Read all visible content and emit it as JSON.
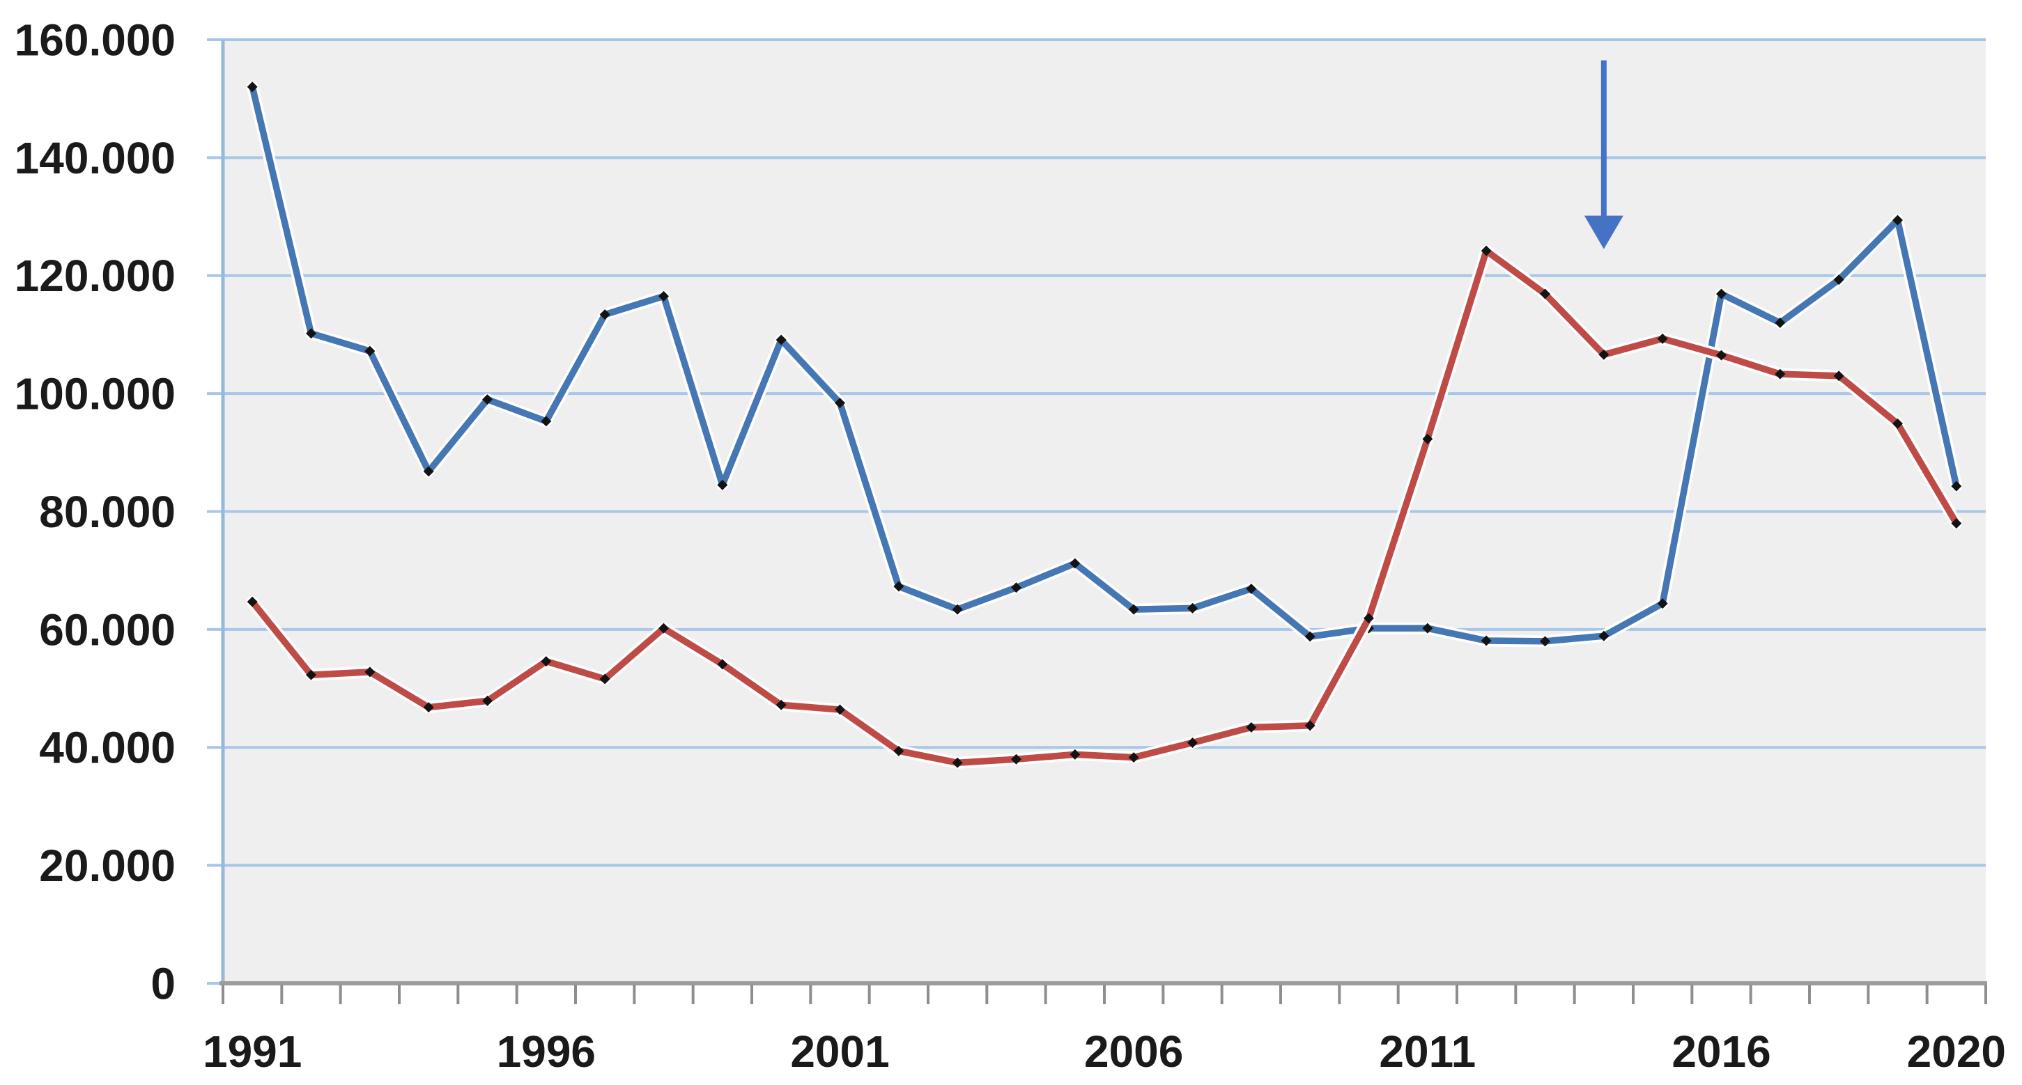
{
  "chart_data": {
    "type": "line",
    "title": "",
    "x": [
      1991,
      1992,
      1993,
      1994,
      1995,
      1996,
      1997,
      1998,
      1999,
      2000,
      2001,
      2002,
      2003,
      2004,
      2005,
      2006,
      2007,
      2008,
      2009,
      2010,
      2011,
      2012,
      2013,
      2014,
      2015,
      2016,
      2017,
      2018,
      2019,
      2020
    ],
    "x_tick_labels_shown": [
      "1991",
      "1996",
      "2001",
      "2006",
      "2011",
      "2016",
      "2020"
    ],
    "y_axis": {
      "min": 0,
      "max": 160000,
      "step": 20000,
      "tick_labels": [
        "0",
        "20.000",
        "40.000",
        "60.000",
        "80.000",
        "100.000",
        "120.000",
        "140.000",
        "160.000"
      ]
    },
    "series": [
      {
        "name": "blue-series",
        "color": "#4577b4",
        "marker_color": "#131313",
        "values": [
          152000,
          110200,
          107200,
          86800,
          99000,
          95300,
          113400,
          116500,
          84500,
          109100,
          98400,
          67300,
          63400,
          67100,
          71200,
          63400,
          63600,
          66900,
          58800,
          60200,
          60200,
          58100,
          58000,
          58900,
          64400,
          116900,
          112000,
          119300,
          129400,
          84300
        ]
      },
      {
        "name": "red-series",
        "color": "#bf4b47",
        "marker_color": "#131313",
        "values": [
          64700,
          52300,
          52800,
          46800,
          47900,
          54600,
          51600,
          60200,
          54100,
          47200,
          46400,
          39400,
          37400,
          38000,
          38800,
          38300,
          40800,
          43400,
          43700,
          61900,
          92300,
          124200,
          116900,
          106600,
          109300,
          106500,
          103300,
          103000,
          94900,
          78000
        ]
      }
    ],
    "annotation": {
      "type": "down-arrow",
      "year": 2014,
      "from_value": 156500,
      "to_value": 124500,
      "color": "#4472c4"
    },
    "layout_hints": {
      "grid": "horizontal-only",
      "legend": "none",
      "plot_background": "#f0efef",
      "gridline_color": "#a8c7e8",
      "y_axis_line_color": "#94b8e0",
      "x_axis_line_color": "#9c9c9c",
      "x_tick_color": "#8e8e8e",
      "text_color": "#1a1a1a",
      "halo_color": "#ffffff"
    }
  }
}
